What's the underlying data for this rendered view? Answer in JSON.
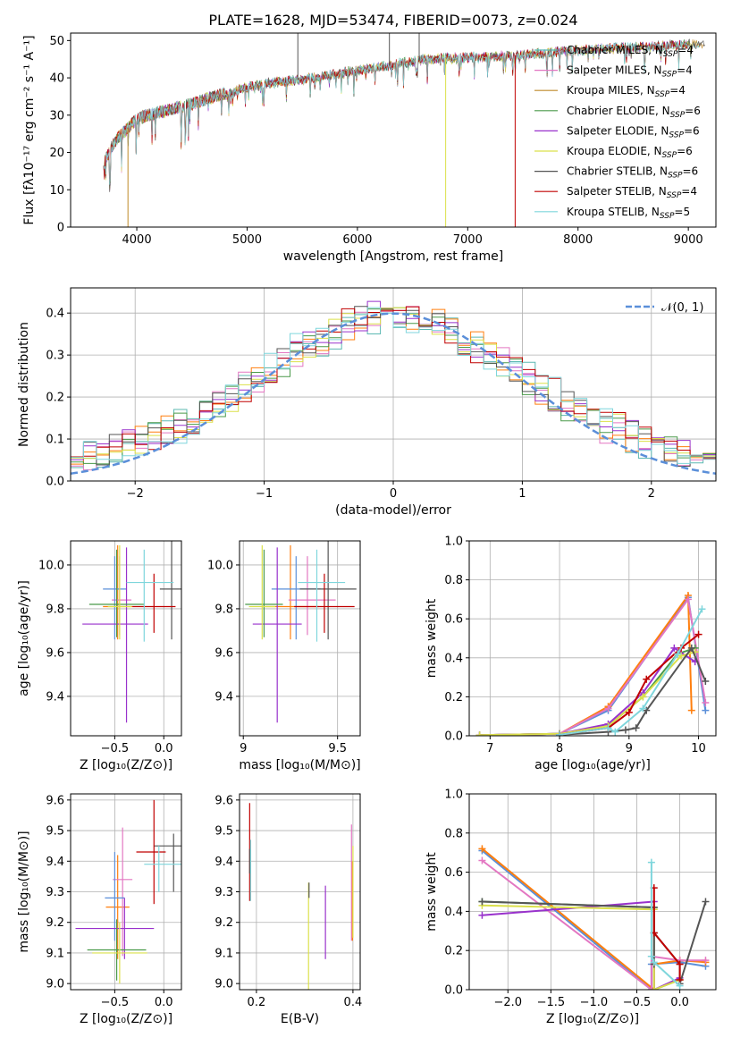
{
  "chart_data": [
    {
      "id": "spectrum",
      "type": "line",
      "title": "PLATE=1628, MJD=53474, FIBERID=0073, z=0.024",
      "xlabel": "wavelength [Angstrom, rest frame]",
      "ylabel": "Flux [fλ10⁻¹⁷ erg cm⁻² s⁻¹ A⁻¹]",
      "xlim": [
        3400,
        9250
      ],
      "ylim": [
        0,
        52
      ],
      "xticks": [
        4000,
        5000,
        6000,
        7000,
        8000,
        9000
      ],
      "yticks": [
        0,
        10,
        20,
        30,
        40,
        50
      ],
      "grid": false,
      "legend_position": "upper-right",
      "continuum_knots": {
        "x": [
          3700,
          3800,
          3900,
          4000,
          4100,
          4300,
          4500,
          4700,
          5000,
          5300,
          5600,
          6000,
          6300,
          6600,
          7000,
          7400,
          7800,
          8200,
          8600,
          9000,
          9200
        ],
        "y": [
          17,
          23,
          26,
          29,
          30,
          31.5,
          33,
          35,
          37.5,
          39,
          40,
          42,
          43.5,
          45,
          45.5,
          46,
          47,
          47.8,
          48.3,
          49,
          49.3
        ]
      },
      "series": [
        {
          "name": "Chabrier MILES, N_SSP=4",
          "color": "#5cb8b2"
        },
        {
          "name": "Salpeter MILES, N_SSP=4",
          "color": "#e377c2"
        },
        {
          "name": "Kroupa MILES, N_SSP=4",
          "color": "#bf8a2a"
        },
        {
          "name": "Chabrier ELODIE, N_SSP=6",
          "color": "#4a9a4a"
        },
        {
          "name": "Salpeter ELODIE, N_SSP=6",
          "color": "#9932cc"
        },
        {
          "name": "Kroupa ELODIE, N_SSP=6",
          "color": "#dbe04a"
        },
        {
          "name": "Chabrier STELIB, N_SSP=6",
          "color": "#555555"
        },
        {
          "name": "Salpeter STELIB, N_SSP=4",
          "color": "#c00000"
        },
        {
          "name": "Kroupa STELIB, N_SSP=5",
          "color": "#7fd6dc"
        }
      ]
    },
    {
      "id": "residual-histogram",
      "type": "histogram",
      "xlabel": "(data-model)/error",
      "ylabel": "Normed distribution",
      "xlim": [
        -2.5,
        2.5
      ],
      "ylim": [
        0,
        0.46
      ],
      "xticks": [
        -2,
        -1,
        0,
        1,
        2
      ],
      "yticks": [
        0.0,
        0.1,
        0.2,
        0.3,
        0.4
      ],
      "grid": true,
      "legend": [
        "𝒩(0, 1)"
      ],
      "reference_curve": {
        "name": "𝒩(0, 1)",
        "mean": 0,
        "std": 1,
        "color": "#5b8fd9",
        "style": "dashed"
      },
      "bin_width": 0.1,
      "bin_start": -2.5,
      "series": [
        {
          "color": "#5cb8b2",
          "offset": 0.0
        },
        {
          "color": "#e377c2",
          "offset": 0.4
        },
        {
          "color": "#ff7f0e",
          "offset": 0.8
        },
        {
          "color": "#4a9a4a",
          "offset": 1.2
        },
        {
          "color": "#9932cc",
          "offset": 1.6
        },
        {
          "color": "#dbe04a",
          "offset": 2.0
        },
        {
          "color": "#555555",
          "offset": 2.4
        },
        {
          "color": "#c00000",
          "offset": 2.8
        },
        {
          "color": "#7fd6dc",
          "offset": 3.2
        }
      ]
    },
    {
      "id": "age-vs-Z",
      "type": "errorbar",
      "xlabel": "Z [log₁₀(Z/Z⊙)]",
      "ylabel": "age  [log₁₀(age/yr)]",
      "xlim": [
        -0.95,
        0.18
      ],
      "ylim": [
        9.22,
        10.11
      ],
      "xticks": [
        -0.5,
        0.0
      ],
      "xticklabels": [
        "−0.5",
        "0.0"
      ],
      "yticks": [
        9.4,
        9.6,
        9.8,
        10.0
      ],
      "grid": true,
      "points": [
        {
          "x": -0.47,
          "y": 9.81,
          "xerr": [
            0.15,
            0.15
          ],
          "yerr": [
            0.15,
            0.28
          ],
          "color": "#ff7f0e"
        },
        {
          "x": -0.45,
          "y": 9.84,
          "xerr": [
            0.08,
            0.12
          ],
          "yerr": [
            0.16,
            0.2
          ],
          "color": "#e377c2"
        },
        {
          "x": -0.5,
          "y": 9.89,
          "xerr": [
            0.12,
            0.12
          ],
          "yerr": [
            0.23,
            0.15
          ],
          "color": "#5b8fd9"
        },
        {
          "x": -0.38,
          "y": 9.73,
          "xerr": [
            0.45,
            0.22
          ],
          "yerr": [
            0.45,
            0.35
          ],
          "color": "#9932cc"
        },
        {
          "x": -0.48,
          "y": 9.82,
          "xerr": [
            0.28,
            0.28
          ],
          "yerr": [
            0.15,
            0.25
          ],
          "color": "#4a9a4a"
        },
        {
          "x": -0.45,
          "y": 9.81,
          "xerr": [
            0.12,
            0.12
          ],
          "yerr": [
            0.15,
            0.28
          ],
          "color": "#dbe04a"
        },
        {
          "x": 0.08,
          "y": 9.89,
          "xerr": [
            0.12,
            0.12
          ],
          "yerr": [
            0.23,
            0.22
          ],
          "color": "#555555"
        },
        {
          "x": -0.1,
          "y": 9.81,
          "xerr": [
            0.22,
            0.22
          ],
          "yerr": [
            0.12,
            0.15
          ],
          "color": "#c00000"
        },
        {
          "x": -0.2,
          "y": 9.92,
          "xerr": [
            0.18,
            0.3
          ],
          "yerr": [
            0.27,
            0.15
          ],
          "color": "#7fd6dc"
        }
      ]
    },
    {
      "id": "age-vs-mass",
      "type": "errorbar",
      "xlabel": "mass [log₁₀(M/M⊙)]",
      "ylabel": "",
      "xlim": [
        8.98,
        9.62
      ],
      "ylim": [
        9.22,
        10.11
      ],
      "xticks": [
        9.0,
        9.5
      ],
      "yticks": [
        9.4,
        9.6,
        9.8,
        10.0
      ],
      "grid": true,
      "points": [
        {
          "x": 9.25,
          "y": 9.81,
          "xerr": [
            0.15,
            0.15
          ],
          "yerr": [
            0.15,
            0.28
          ],
          "color": "#ff7f0e"
        },
        {
          "x": 9.34,
          "y": 9.84,
          "xerr": [
            0.1,
            0.15
          ],
          "yerr": [
            0.16,
            0.2
          ],
          "color": "#e377c2"
        },
        {
          "x": 9.28,
          "y": 9.89,
          "xerr": [
            0.13,
            0.13
          ],
          "yerr": [
            0.23,
            0.15
          ],
          "color": "#5b8fd9"
        },
        {
          "x": 9.18,
          "y": 9.73,
          "xerr": [
            0.13,
            0.13
          ],
          "yerr": [
            0.45,
            0.35
          ],
          "color": "#9932cc"
        },
        {
          "x": 9.11,
          "y": 9.82,
          "xerr": [
            0.1,
            0.1
          ],
          "yerr": [
            0.15,
            0.25
          ],
          "color": "#4a9a4a"
        },
        {
          "x": 9.1,
          "y": 9.81,
          "xerr": [
            0.07,
            0.07
          ],
          "yerr": [
            0.15,
            0.28
          ],
          "color": "#dbe04a"
        },
        {
          "x": 9.45,
          "y": 9.89,
          "xerr": [
            0.15,
            0.15
          ],
          "yerr": [
            0.23,
            0.22
          ],
          "color": "#555555"
        },
        {
          "x": 9.43,
          "y": 9.81,
          "xerr": [
            0.16,
            0.16
          ],
          "yerr": [
            0.12,
            0.15
          ],
          "color": "#c00000"
        },
        {
          "x": 9.39,
          "y": 9.92,
          "xerr": [
            0.1,
            0.15
          ],
          "yerr": [
            0.27,
            0.15
          ],
          "color": "#7fd6dc"
        }
      ]
    },
    {
      "id": "weight-vs-age",
      "type": "line",
      "xlabel": "age  [log₁₀(age/yr)]",
      "ylabel": "mass weight",
      "xlim": [
        6.7,
        10.25
      ],
      "ylim": [
        0,
        1.0
      ],
      "xticks": [
        7,
        8,
        9,
        10
      ],
      "yticks": [
        0.0,
        0.2,
        0.4,
        0.6,
        0.8,
        1.0
      ],
      "grid": true,
      "series": [
        {
          "color": "#5b8fd9",
          "x": [
            6.85,
            8.0,
            8.7,
            9.85,
            10.1
          ],
          "y": [
            0.003,
            0.01,
            0.13,
            0.71,
            0.13
          ]
        },
        {
          "color": "#ff7f0e",
          "x": [
            6.85,
            8.0,
            8.7,
            9.85,
            9.9
          ],
          "y": [
            0.003,
            0.01,
            0.15,
            0.72,
            0.13
          ]
        },
        {
          "color": "#e377c2",
          "x": [
            6.85,
            8.0,
            8.7,
            9.85,
            10.1
          ],
          "y": [
            0.003,
            0.01,
            0.14,
            0.7,
            0.17
          ]
        },
        {
          "color": "#4a9a4a",
          "x": [
            6.85,
            8.0,
            8.7,
            9.2,
            9.7,
            9.95
          ],
          "y": [
            0.003,
            0.01,
            0.05,
            0.2,
            0.42,
            0.45
          ]
        },
        {
          "color": "#9932cc",
          "x": [
            6.85,
            8.0,
            8.7,
            9.2,
            9.65,
            9.95
          ],
          "y": [
            0.003,
            0.01,
            0.06,
            0.22,
            0.45,
            0.38
          ]
        },
        {
          "color": "#dbe04a",
          "x": [
            6.85,
            8.0,
            8.7,
            9.2,
            9.75,
            9.95
          ],
          "y": [
            0.003,
            0.01,
            0.05,
            0.2,
            0.41,
            0.43
          ]
        },
        {
          "color": "#555555",
          "x": [
            8.0,
            8.7,
            8.95,
            9.1,
            9.25,
            9.9,
            10.1
          ],
          "y": [
            0.005,
            0.02,
            0.03,
            0.04,
            0.13,
            0.45,
            0.28
          ]
        },
        {
          "color": "#c00000",
          "x": [
            8.0,
            8.7,
            9.0,
            9.25,
            9.75,
            10.0
          ],
          "y": [
            0.005,
            0.04,
            0.12,
            0.29,
            0.45,
            0.52
          ]
        },
        {
          "color": "#7fd6dc",
          "x": [
            8.0,
            8.7,
            8.8,
            9.2,
            9.7,
            10.05
          ],
          "y": [
            0.005,
            0.04,
            0.02,
            0.14,
            0.42,
            0.65
          ]
        }
      ]
    },
    {
      "id": "mass-vs-Z",
      "type": "errorbar",
      "xlabel": "Z [log₁₀(Z/Z⊙)]",
      "ylabel": "mass [log₁₀(M/M⊙)]",
      "xlim": [
        -0.95,
        0.18
      ],
      "ylim": [
        8.98,
        9.62
      ],
      "xticks": [
        -0.5,
        0.0
      ],
      "xticklabels": [
        "−0.5",
        "0.0"
      ],
      "yticks": [
        9.0,
        9.1,
        9.2,
        9.3,
        9.4,
        9.5,
        9.6
      ],
      "grid": true,
      "points": [
        {
          "x": -0.47,
          "y": 9.25,
          "xerr": [
            0.12,
            0.12
          ],
          "yerr": [
            0.17,
            0.17
          ],
          "color": "#ff7f0e"
        },
        {
          "x": -0.42,
          "y": 9.34,
          "xerr": [
            0.1,
            0.1
          ],
          "yerr": [
            0.25,
            0.17
          ],
          "color": "#e377c2"
        },
        {
          "x": -0.5,
          "y": 9.28,
          "xerr": [
            0.1,
            0.1
          ],
          "yerr": [
            0.14,
            0.15
          ],
          "color": "#5b8fd9"
        },
        {
          "x": -0.4,
          "y": 9.18,
          "xerr": [
            0.5,
            0.3
          ],
          "yerr": [
            0.1,
            0.1
          ],
          "color": "#9932cc"
        },
        {
          "x": -0.48,
          "y": 9.11,
          "xerr": [
            0.3,
            0.3
          ],
          "yerr": [
            0.1,
            0.1
          ],
          "color": "#4a9a4a"
        },
        {
          "x": -0.45,
          "y": 9.1,
          "xerr": [
            0.28,
            0.28
          ],
          "yerr": [
            0.1,
            0.1
          ],
          "color": "#dbe04a"
        },
        {
          "x": 0.1,
          "y": 9.45,
          "xerr": [
            0.2,
            0.12
          ],
          "yerr": [
            0.15,
            0.04
          ],
          "color": "#555555"
        },
        {
          "x": -0.1,
          "y": 9.43,
          "xerr": [
            0.18,
            0.12
          ],
          "yerr": [
            0.17,
            0.17
          ],
          "color": "#c00000"
        },
        {
          "x": -0.05,
          "y": 9.39,
          "xerr": [
            0.15,
            0.3
          ],
          "yerr": [
            0.09,
            0.06
          ],
          "color": "#7fd6dc"
        }
      ]
    },
    {
      "id": "mass-vs-EBV",
      "type": "errorbar",
      "xlabel": "E(B-V)",
      "ylabel": "",
      "xlim": [
        0.165,
        0.415
      ],
      "ylim": [
        8.98,
        9.62
      ],
      "xticks": [
        0.2,
        0.4
      ],
      "yticks": [
        9.0,
        9.1,
        9.2,
        9.3,
        9.4,
        9.5,
        9.6
      ],
      "grid": true,
      "points": [
        {
          "x": 0.186,
          "y": 9.38,
          "xerr": [
            0,
            0
          ],
          "yerr": [
            0.11,
            0.21
          ],
          "color": "#c00000"
        },
        {
          "x": 0.188,
          "y": 9.37,
          "xerr": [
            0,
            0
          ],
          "yerr": [
            0.1,
            0.1
          ],
          "color": "#7fd6dc"
        },
        {
          "x": 0.186,
          "y": 9.4,
          "xerr": [
            0,
            0
          ],
          "yerr": [
            0.04,
            0.04
          ],
          "color": "#555555"
        },
        {
          "x": 0.308,
          "y": 9.12,
          "xerr": [
            0,
            0
          ],
          "yerr": [
            0.21,
            0.21
          ],
          "color": "#dbe04a"
        },
        {
          "x": 0.309,
          "y": 9.31,
          "xerr": [
            0,
            0
          ],
          "yerr": [
            0.03,
            0.02
          ],
          "color": "#555555"
        },
        {
          "x": 0.343,
          "y": 9.2,
          "xerr": [
            0,
            0
          ],
          "yerr": [
            0.12,
            0.12
          ],
          "color": "#9932cc"
        },
        {
          "x": 0.397,
          "y": 9.33,
          "xerr": [
            0,
            0
          ],
          "yerr": [
            0.19,
            0.19
          ],
          "color": "#e377c2"
        },
        {
          "x": 0.399,
          "y": 9.28,
          "xerr": [
            0,
            0
          ],
          "yerr": [
            0.14,
            0.12
          ],
          "color": "#ff7f0e"
        },
        {
          "x": 0.4,
          "y": 9.3,
          "xerr": [
            0,
            0
          ],
          "yerr": [
            0.15,
            0.15
          ],
          "color": "#dbe04a"
        }
      ]
    },
    {
      "id": "weight-vs-Z",
      "type": "line",
      "xlabel": "Z [log₁₀(Z/Z⊙)]",
      "ylabel": "mass weight",
      "xlim": [
        -2.45,
        0.42
      ],
      "ylim": [
        0,
        1.0
      ],
      "xticks": [
        -2.0,
        -1.5,
        -1.0,
        -0.5,
        0.0
      ],
      "xticklabels": [
        "−2.0",
        "−1.5",
        "−1.0",
        "−0.5",
        "0.0"
      ],
      "yticks": [
        0.0,
        0.2,
        0.4,
        0.6,
        0.8,
        1.0
      ],
      "grid": true,
      "series": [
        {
          "color": "#5b8fd9",
          "x": [
            -2.3,
            -0.33,
            -0.33,
            0.0,
            0.3
          ],
          "y": [
            0.71,
            0.0,
            0.13,
            0.14,
            0.12
          ]
        },
        {
          "color": "#ff7f0e",
          "x": [
            -2.3,
            -0.3,
            -0.3,
            0.0,
            0.3
          ],
          "y": [
            0.72,
            0.0,
            0.13,
            0.15,
            0.14
          ]
        },
        {
          "color": "#e377c2",
          "x": [
            -2.3,
            -0.33,
            -0.33,
            0.0,
            0.3
          ],
          "y": [
            0.66,
            0.0,
            0.17,
            0.15,
            0.15
          ]
        },
        {
          "color": "#4a9a4a",
          "x": [
            -2.3,
            -0.3,
            -0.3,
            0.0
          ],
          "y": [
            0.45,
            0.42,
            0.0,
            0.05
          ]
        },
        {
          "color": "#9932cc",
          "x": [
            -2.3,
            -0.3,
            -0.3,
            0.0
          ],
          "y": [
            0.38,
            0.45,
            0.0,
            0.06
          ]
        },
        {
          "color": "#dbe04a",
          "x": [
            -2.3,
            -0.3,
            -0.3,
            0.0
          ],
          "y": [
            0.43,
            0.41,
            0.0,
            0.05
          ]
        },
        {
          "color": "#555555",
          "x": [
            -2.3,
            -0.3,
            -0.3,
            -0.3,
            0.0,
            0.0,
            0.3
          ],
          "y": [
            0.45,
            0.42,
            0.13,
            0.29,
            0.13,
            0.03,
            0.45
          ]
        },
        {
          "color": "#c00000",
          "x": [
            -0.3,
            -0.3,
            0.0,
            0.0
          ],
          "y": [
            0.52,
            0.29,
            0.13,
            0.05
          ]
        },
        {
          "color": "#7fd6dc",
          "x": [
            -0.33,
            -0.33,
            -0.3,
            0.0
          ],
          "y": [
            0.65,
            0.17,
            0.14,
            0.02
          ]
        }
      ]
    }
  ]
}
